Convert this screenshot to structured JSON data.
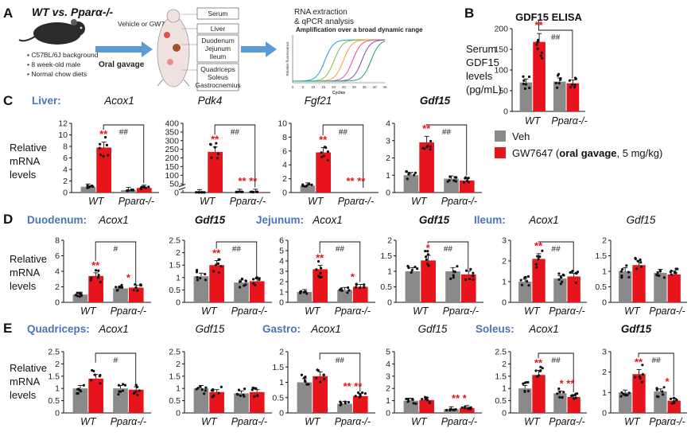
{
  "header": {
    "title": "WT vs. Pparα-/-"
  },
  "panelA": {
    "label": "A",
    "mouse_notes": [
      "C57BL/6J background",
      "8 week-old male",
      "Normal chow diets"
    ],
    "treatment": "Vehicle or GW7647",
    "route": "Oral gavage",
    "tissues": [
      "Serum",
      "Liver",
      "Duodenum",
      "Jejunum",
      "Ileum",
      "Quadriceps",
      "Soleus",
      "Gastrocnemius"
    ],
    "rna_text": "RNA extraction & qPCR analysis",
    "qpcr_title": "Amplification over a broad dynamic range",
    "qpcr_xlabel": "Cycles",
    "qpcr_ylabel": "Relative fluorescence",
    "qpcr_xticks": [
      "0",
      "5",
      "10",
      "15",
      "20",
      "25",
      "30",
      "35",
      "40",
      "45"
    ]
  },
  "panelB": {
    "label": "B",
    "title": "GDF15 ELISA",
    "ylabel": [
      "Serum",
      "GDF15",
      "levels",
      "(pg/mL)"
    ]
  },
  "legend": {
    "veh": {
      "label": "Veh",
      "color": "#8a8a8a"
    },
    "gw": {
      "label_pre": "GW7647 (",
      "label_bold": "oral gavage",
      "label_post": ", 5 mg/kg)",
      "color": "#e8141c"
    }
  },
  "panel_labels": {
    "C": "C",
    "D": "D",
    "E": "E"
  },
  "tissue_labels": {
    "liver": "Liver:",
    "duodenum": "Duodenum:",
    "jejunum": "Jejunum:",
    "ileum": "Ileum:",
    "quadriceps": "Quadriceps:",
    "gastro": "Gastro:",
    "soleus": "Soleus:"
  },
  "rel_mrna": [
    "Relative",
    "mRNA",
    "levels"
  ],
  "groups": [
    "WT",
    "Pparα-/-"
  ],
  "chart_data": [
    {
      "id": "B",
      "type": "bar",
      "title": "GDF15 ELISA",
      "groups": [
        "WT",
        "Pparα-/-"
      ],
      "veh": [
        70,
        72
      ],
      "gw": [
        168,
        68
      ],
      "ylim": [
        0,
        200
      ],
      "yticks": [
        0,
        50,
        100,
        150,
        200
      ],
      "sig_wt": "**",
      "sig_ko": "",
      "hash": "##",
      "bracket": true
    },
    {
      "id": "C1",
      "type": "bar",
      "title": "Acox1",
      "tissue": "Liver",
      "groups": [
        "WT",
        "Pparα-/-"
      ],
      "veh": [
        1.0,
        0.4
      ],
      "gw": [
        7.8,
        0.8
      ],
      "ylim": [
        0,
        12
      ],
      "yticks": [
        0,
        2,
        4,
        6,
        8,
        10,
        12
      ],
      "sig_wt": "**",
      "sig_ko": "",
      "hash": "##",
      "bracket": true
    },
    {
      "id": "C2",
      "type": "bar",
      "title": "Pdk4",
      "tissue": "Liver",
      "groups": [
        "WT",
        "Pparα-/-"
      ],
      "veh": [
        1,
        3
      ],
      "gw": [
        235,
        3
      ],
      "ylim": [
        0,
        400
      ],
      "yticks": [
        0,
        50,
        100,
        150,
        200,
        250,
        300,
        350,
        400
      ],
      "break": true,
      "sig_wt": "**",
      "sig_ko": "** **",
      "hash": "##",
      "bracket": true
    },
    {
      "id": "C3",
      "type": "bar",
      "title": "Fgf21",
      "tissue": "Liver",
      "groups": [
        "WT",
        "Pparα-/-"
      ],
      "veh": [
        1,
        0
      ],
      "gw": [
        5.8,
        0
      ],
      "ylim": [
        0,
        10
      ],
      "yticks": [
        0,
        2,
        4,
        6,
        8,
        10
      ],
      "sig_wt": "**",
      "sig_ko": "** **",
      "hash": "##",
      "bracket": true
    },
    {
      "id": "C4",
      "type": "bar",
      "title": "Gdf15",
      "bold": true,
      "tissue": "Liver",
      "groups": [
        "WT",
        "Pparα-/-"
      ],
      "veh": [
        1.0,
        0.8
      ],
      "gw": [
        2.9,
        0.7
      ],
      "ylim": [
        0,
        4
      ],
      "yticks": [
        0,
        1,
        2,
        3,
        4
      ],
      "sig_wt": "**",
      "sig_ko": "",
      "hash": "##",
      "bracket": true
    },
    {
      "id": "D1",
      "type": "bar",
      "title": "Acox1",
      "tissue": "Duodenum",
      "groups": [
        "WT",
        "Pparα-/-"
      ],
      "veh": [
        1.0,
        1.8
      ],
      "gw": [
        3.4,
        1.9
      ],
      "ylim": [
        0,
        8
      ],
      "yticks": [
        0,
        2,
        4,
        6,
        8
      ],
      "sig_wt": "**",
      "sig_ko": "*",
      "hash": "#",
      "bracket": true
    },
    {
      "id": "D2",
      "type": "bar",
      "title": "Gdf15",
      "bold": true,
      "tissue": "Duodenum",
      "groups": [
        "WT",
        "Pparα-/-"
      ],
      "veh": [
        1.05,
        0.8
      ],
      "gw": [
        1.5,
        0.85
      ],
      "ylim": [
        0,
        2.5
      ],
      "yticks": [
        0,
        0.5,
        1,
        1.5,
        2,
        2.5
      ],
      "sig_wt": "**",
      "sig_ko": "",
      "hash": "##",
      "bracket": true
    },
    {
      "id": "D3",
      "type": "bar",
      "title": "Acox1",
      "tissue": "Jejunum",
      "groups": [
        "WT",
        "Pparα-/-"
      ],
      "veh": [
        1.0,
        1.2
      ],
      "gw": [
        3.2,
        1.5
      ],
      "ylim": [
        0,
        6
      ],
      "yticks": [
        0,
        1,
        2,
        3,
        4,
        5,
        6
      ],
      "sig_wt": "**",
      "sig_ko": "*",
      "hash": "##",
      "bracket": true
    },
    {
      "id": "D4",
      "type": "bar",
      "title": "Gdf15",
      "bold": true,
      "tissue": "Jejunum",
      "groups": [
        "WT",
        "Pparα-/-"
      ],
      "veh": [
        1.0,
        1.0
      ],
      "gw": [
        1.35,
        0.9
      ],
      "ylim": [
        0,
        2
      ],
      "yticks": [
        0,
        0.5,
        1,
        1.5,
        2
      ],
      "sig_wt": "*",
      "sig_ko": "",
      "hash": "##",
      "bracket": true
    },
    {
      "id": "D5",
      "type": "bar",
      "title": "Acox1",
      "tissue": "Ileum",
      "groups": [
        "WT",
        "Pparα-/-"
      ],
      "veh": [
        1.0,
        1.15
      ],
      "gw": [
        2.1,
        1.25
      ],
      "ylim": [
        0,
        3
      ],
      "yticks": [
        0,
        1,
        2,
        3
      ],
      "sig_wt": "**",
      "sig_ko": "",
      "hash": "##",
      "bracket": true
    },
    {
      "id": "D6",
      "type": "bar",
      "title": "Gdf15",
      "tissue": "Ileum",
      "groups": [
        "WT",
        "Pparα-/-"
      ],
      "veh": [
        1.0,
        0.95
      ],
      "gw": [
        1.2,
        0.9
      ],
      "ylim": [
        0,
        2
      ],
      "yticks": [
        0,
        0.5,
        1,
        1.5,
        2
      ],
      "sig_wt": "",
      "sig_ko": "",
      "hash": "",
      "bracket": false
    },
    {
      "id": "E1",
      "type": "bar",
      "title": "Acox1",
      "tissue": "Quadriceps",
      "groups": [
        "WT",
        "Pparα-/-"
      ],
      "veh": [
        1.0,
        1.0
      ],
      "gw": [
        1.4,
        0.95
      ],
      "ylim": [
        0,
        2.5
      ],
      "yticks": [
        0,
        0.5,
        1,
        1.5,
        2,
        2.5
      ],
      "sig_wt": "",
      "sig_ko": "",
      "hash": "#",
      "bracket": true
    },
    {
      "id": "E2",
      "type": "bar",
      "title": "Gdf15",
      "tissue": "Quadriceps",
      "groups": [
        "WT",
        "Pparα-/-"
      ],
      "veh": [
        1.0,
        0.8
      ],
      "gw": [
        0.85,
        0.85
      ],
      "ylim": [
        0,
        2.5
      ],
      "yticks": [
        0,
        0.5,
        1,
        1.5,
        2,
        2.5
      ],
      "sig_wt": "",
      "sig_ko": "",
      "hash": "",
      "bracket": false
    },
    {
      "id": "E3",
      "type": "bar",
      "title": "Acox1",
      "tissue": "Gastrocnemius",
      "groups": [
        "WT",
        "Pparα-/-"
      ],
      "veh": [
        1.0,
        0.3
      ],
      "gw": [
        1.2,
        0.55
      ],
      "ylim": [
        0,
        2
      ],
      "yticks": [
        0,
        0.5,
        1,
        1.5,
        2
      ],
      "sig_wt": "",
      "sig_ko": "** **",
      "hash": "##",
      "bracket": true
    },
    {
      "id": "E4",
      "type": "bar",
      "title": "Gdf15",
      "tissue": "Gastrocnemius",
      "groups": [
        "WT",
        "Pparα-/-"
      ],
      "veh": [
        1.0,
        0.3
      ],
      "gw": [
        1.05,
        0.4
      ],
      "ylim": [
        0,
        5
      ],
      "yticks": [
        0,
        1,
        2,
        3,
        4,
        5
      ],
      "sig_wt": "",
      "sig_ko": "** *",
      "hash": "",
      "bracket": false
    },
    {
      "id": "E5",
      "type": "bar",
      "title": "Acox1",
      "tissue": "Soleus",
      "groups": [
        "WT",
        "Pparα-/-"
      ],
      "veh": [
        1.0,
        0.8
      ],
      "gw": [
        1.55,
        0.65
      ],
      "ylim": [
        0,
        2.5
      ],
      "yticks": [
        0,
        0.5,
        1,
        1.5,
        2,
        2.5
      ],
      "sig_wt": "**",
      "sig_ko": "* **",
      "hash": "##",
      "bracket": true
    },
    {
      "id": "E6",
      "type": "bar",
      "title": "Gdf15",
      "bold": true,
      "tissue": "Soleus",
      "groups": [
        "WT",
        "Pparα-/-"
      ],
      "veh": [
        1.0,
        1.05
      ],
      "gw": [
        1.9,
        0.6
      ],
      "ylim": [
        0,
        3
      ],
      "yticks": [
        0,
        1,
        2,
        3
      ],
      "sig_wt": "**",
      "sig_ko": "*",
      "hash": "##",
      "bracket": true
    }
  ]
}
